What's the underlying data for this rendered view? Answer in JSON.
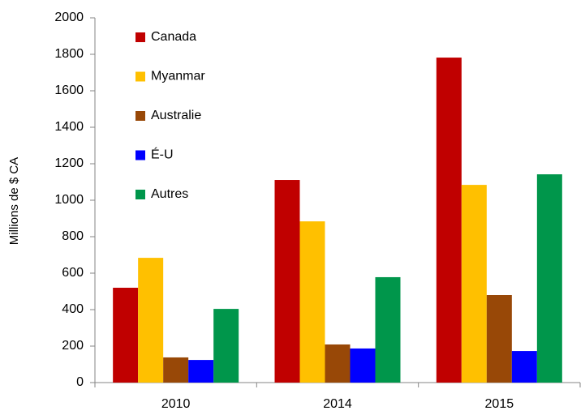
{
  "chart_data": {
    "type": "bar",
    "y_label": "Millions de $ CA",
    "categories": [
      "2010",
      "2014",
      "2015"
    ],
    "series": [
      {
        "name": "Canada",
        "color": "#c00000",
        "values": [
          520,
          1111,
          1782
        ]
      },
      {
        "name": "Myanmar",
        "color": "#ffc000",
        "values": [
          684,
          884,
          1084
        ]
      },
      {
        "name": "Australie",
        "color": "#984807",
        "values": [
          138,
          209,
          480
        ]
      },
      {
        "name": "É-U",
        "color": "#0000ff",
        "values": [
          124,
          187,
          173
        ]
      },
      {
        "name": "Autres",
        "color": "#00964b",
        "values": [
          404,
          578,
          1142
        ]
      }
    ],
    "ylim": [
      0,
      2000
    ],
    "yticks": [
      0,
      200,
      400,
      600,
      800,
      1000,
      1200,
      1400,
      1600,
      1800,
      2000
    ],
    "grid": false
  }
}
